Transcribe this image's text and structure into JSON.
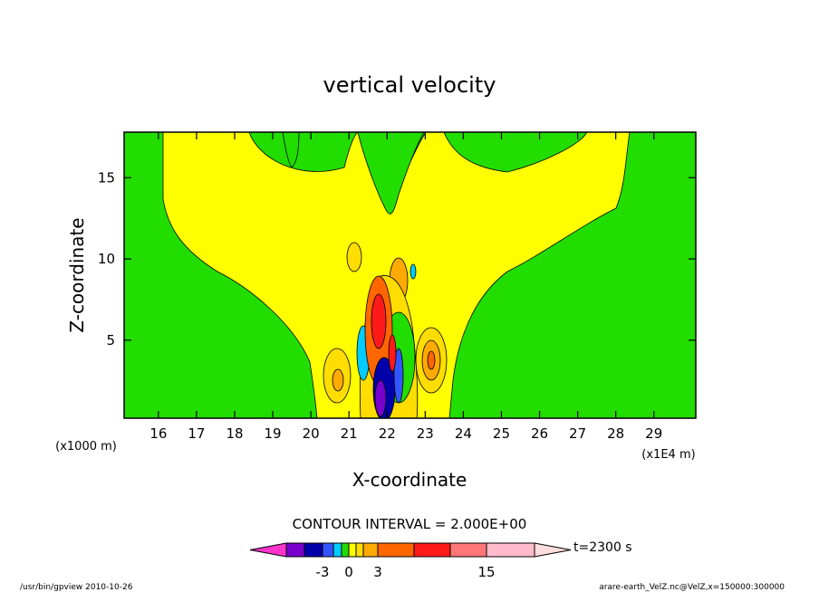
{
  "chart_data": {
    "type": "heatmap",
    "title": "vertical velocity",
    "xlabel": "X-coordinate",
    "ylabel": "Z-coordinate",
    "x_unit": "(x1E4 m)",
    "y_unit": "(x1000 m)",
    "xlim": [
      15.1,
      30.1
    ],
    "ylim": [
      0.2,
      17.8
    ],
    "x_ticks": [
      16,
      17,
      18,
      19,
      20,
      21,
      22,
      23,
      24,
      25,
      26,
      27,
      28,
      29
    ],
    "y_ticks": [
      5,
      10,
      15
    ],
    "contour_interval_label": "CONTOUR INTERVAL = 2.000E+00",
    "time_label": "t=2300 s",
    "colorbar": {
      "colors": [
        "#ff33cc",
        "#7700cc",
        "#0000aa",
        "#3355ff",
        "#00ccff",
        "#22dd00",
        "#ffff00",
        "#ffdd00",
        "#ffaa00",
        "#ff6600",
        "#ff1a1a",
        "#ff7777",
        "#ffbbcc",
        "#ffdddd"
      ],
      "tick_labels": [
        {
          "label": "-3",
          "value": -3
        },
        {
          "label": "0",
          "value": 0
        },
        {
          "label": "3",
          "value": 3
        },
        {
          "label": "15",
          "value": 15
        }
      ]
    },
    "regions": [
      {
        "level": 0,
        "x": [
          15.1,
          30.1
        ],
        "z": [
          0.2,
          17.8
        ],
        "shape": "rect",
        "color": "#22dd00"
      },
      {
        "level": 1,
        "x": [
          16.1,
          29.4
        ],
        "z": [
          0.2,
          17.8
        ],
        "shape": "plume",
        "color": "#ffff00"
      },
      {
        "level": 2,
        "x": [
          20.6,
          23.2
        ],
        "z": [
          1.2,
          4.0
        ],
        "shape": "ellipse",
        "color": "#ffdd00"
      },
      {
        "level": 3,
        "x": [
          21.4,
          22.1
        ],
        "z": [
          1.0,
          8.5
        ],
        "shape": "ellipse",
        "color": "#ff6600"
      },
      {
        "level": -3,
        "x": [
          21.5,
          22.2
        ],
        "z": [
          0.3,
          4.5
        ],
        "shape": "ellipse",
        "color": "#0000aa"
      }
    ],
    "footer_left": "/usr/bin/gpview  2010-10-26",
    "footer_right": "arare-earth_VelZ.nc@VelZ,x=150000:300000"
  }
}
